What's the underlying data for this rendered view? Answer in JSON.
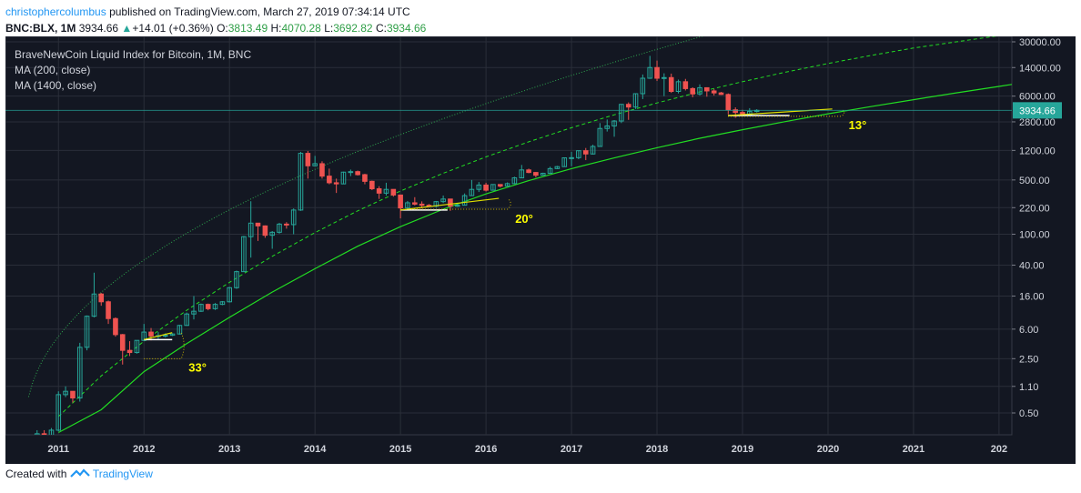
{
  "header": {
    "user": "christophercolumbus",
    "published_text": "published on TradingView.com, March 27, 2019 07:34:14 UTC",
    "symbol": "BNC:BLX, 1M",
    "last": "3934.66",
    "arrow": "▲",
    "change": "+14.01 (+0.36%)",
    "o_label": "O:",
    "o_val": "3813.49",
    "h_label": "H:",
    "h_val": "4070.28",
    "l_label": "L:",
    "l_val": "3692.82",
    "c_label": "C:",
    "c_val": "3934.66"
  },
  "legend": {
    "title": "BraveNewCoin Liquid Index for Bitcoin, 1M, BNC",
    "ma1": "MA (200, close)",
    "ma2": "MA (1400, close)"
  },
  "footer": {
    "created": "Created with",
    "brand": "TradingView"
  },
  "colors": {
    "background": "#131722",
    "grid": "#2a2e39",
    "up": "#26a69a",
    "down": "#ef5350",
    "ma200": "#22dd22",
    "ma1400": "#22dd22",
    "angle_line": "#e0e000",
    "angle_text": "#ffff00",
    "price_label": "#26a69a",
    "axis_text": "#d1d4dc"
  },
  "chart_data": {
    "type": "candlestick",
    "scale": "log",
    "x_ticks": [
      "2011",
      "2012",
      "2013",
      "2014",
      "2015",
      "2016",
      "2017",
      "2018",
      "2019",
      "2020",
      "2021",
      "202"
    ],
    "y_ticks": [
      "30000.00",
      "14000.00",
      "6000.00",
      "2800.00",
      "1200.00",
      "500.00",
      "220.00",
      "100.00",
      "40.00",
      "16.00",
      "6.00",
      "2.50",
      "1.10",
      "0.50"
    ],
    "last_price_label": "3934.66",
    "last_price": 3934.66,
    "candles": [
      {
        "t": 2010.75,
        "o": 0.19,
        "h": 0.3,
        "l": 0.19,
        "c": 0.27
      },
      {
        "t": 2010.833,
        "o": 0.27,
        "h": 0.3,
        "l": 0.21,
        "c": 0.23
      },
      {
        "t": 2010.917,
        "o": 0.23,
        "h": 0.32,
        "l": 0.25,
        "c": 0.3
      },
      {
        "t": 2011.0,
        "o": 0.3,
        "h": 0.95,
        "l": 0.29,
        "c": 0.86
      },
      {
        "t": 2011.083,
        "o": 0.86,
        "h": 1.1,
        "l": 0.8,
        "c": 0.95
      },
      {
        "t": 2011.167,
        "o": 0.95,
        "h": 0.95,
        "l": 0.68,
        "c": 0.78
      },
      {
        "t": 2011.25,
        "o": 0.78,
        "h": 4.0,
        "l": 0.7,
        "c": 3.5
      },
      {
        "t": 2011.333,
        "o": 3.5,
        "h": 9.0,
        "l": 3.2,
        "c": 8.8
      },
      {
        "t": 2011.417,
        "o": 8.8,
        "h": 32.0,
        "l": 8.5,
        "c": 17.0
      },
      {
        "t": 2011.5,
        "o": 17.0,
        "h": 17.5,
        "l": 12.0,
        "c": 13.5
      },
      {
        "t": 2011.583,
        "o": 13.5,
        "h": 14.0,
        "l": 7.0,
        "c": 8.2
      },
      {
        "t": 2011.667,
        "o": 8.2,
        "h": 8.5,
        "l": 4.8,
        "c": 5.1
      },
      {
        "t": 2011.75,
        "o": 5.1,
        "h": 5.2,
        "l": 2.1,
        "c": 3.2
      },
      {
        "t": 2011.833,
        "o": 3.2,
        "h": 4.2,
        "l": 2.7,
        "c": 3.0
      },
      {
        "t": 2011.917,
        "o": 3.0,
        "h": 4.3,
        "l": 2.9,
        "c": 4.3
      },
      {
        "t": 2012.0,
        "o": 4.3,
        "h": 7.0,
        "l": 4.2,
        "c": 5.5
      },
      {
        "t": 2012.083,
        "o": 5.5,
        "h": 6.2,
        "l": 4.3,
        "c": 4.9
      },
      {
        "t": 2012.167,
        "o": 4.9,
        "h": 5.5,
        "l": 4.5,
        "c": 4.95
      },
      {
        "t": 2012.25,
        "o": 4.95,
        "h": 5.3,
        "l": 4.7,
        "c": 5.0
      },
      {
        "t": 2012.333,
        "o": 5.0,
        "h": 5.3,
        "l": 4.9,
        "c": 5.2
      },
      {
        "t": 2012.417,
        "o": 5.2,
        "h": 6.8,
        "l": 5.1,
        "c": 6.7
      },
      {
        "t": 2012.5,
        "o": 6.7,
        "h": 9.8,
        "l": 6.6,
        "c": 9.4
      },
      {
        "t": 2012.583,
        "o": 9.4,
        "h": 16.0,
        "l": 8.0,
        "c": 10.2
      },
      {
        "t": 2012.667,
        "o": 10.2,
        "h": 12.8,
        "l": 10.0,
        "c": 12.5
      },
      {
        "t": 2012.75,
        "o": 12.5,
        "h": 12.8,
        "l": 10.5,
        "c": 11.0
      },
      {
        "t": 2012.833,
        "o": 11.0,
        "h": 13.0,
        "l": 10.6,
        "c": 12.5
      },
      {
        "t": 2012.917,
        "o": 12.5,
        "h": 13.8,
        "l": 12.2,
        "c": 13.5
      },
      {
        "t": 2013.0,
        "o": 13.5,
        "h": 21.0,
        "l": 13.2,
        "c": 20.5
      },
      {
        "t": 2013.083,
        "o": 20.5,
        "h": 34.0,
        "l": 19.8,
        "c": 33.0
      },
      {
        "t": 2013.167,
        "o": 33.0,
        "h": 95.0,
        "l": 33.0,
        "c": 93.0
      },
      {
        "t": 2013.25,
        "o": 93.0,
        "h": 266.0,
        "l": 50.0,
        "c": 139.0
      },
      {
        "t": 2013.333,
        "o": 139.0,
        "h": 140.0,
        "l": 82.0,
        "c": 128.0
      },
      {
        "t": 2013.417,
        "o": 128.0,
        "h": 130.0,
        "l": 90.0,
        "c": 97.0
      },
      {
        "t": 2013.5,
        "o": 97.0,
        "h": 110.0,
        "l": 65.0,
        "c": 106.0
      },
      {
        "t": 2013.583,
        "o": 106.0,
        "h": 140.0,
        "l": 102.0,
        "c": 135.0
      },
      {
        "t": 2013.667,
        "o": 135.0,
        "h": 143.0,
        "l": 118.0,
        "c": 133.0
      },
      {
        "t": 2013.75,
        "o": 133.0,
        "h": 215.0,
        "l": 100.0,
        "c": 205.0
      },
      {
        "t": 2013.833,
        "o": 205.0,
        "h": 1150.0,
        "l": 200.0,
        "c": 1100.0
      },
      {
        "t": 2013.917,
        "o": 1100.0,
        "h": 1180.0,
        "l": 520.0,
        "c": 760.0
      },
      {
        "t": 2014.0,
        "o": 760.0,
        "h": 1020.0,
        "l": 750.0,
        "c": 810.0
      },
      {
        "t": 2014.083,
        "o": 810.0,
        "h": 870.0,
        "l": 520.0,
        "c": 560.0
      },
      {
        "t": 2014.167,
        "o": 560.0,
        "h": 700.0,
        "l": 440.0,
        "c": 460.0
      },
      {
        "t": 2014.25,
        "o": 460.0,
        "h": 520.0,
        "l": 340.0,
        "c": 445.0
      },
      {
        "t": 2014.333,
        "o": 445.0,
        "h": 640.0,
        "l": 440.0,
        "c": 630.0
      },
      {
        "t": 2014.417,
        "o": 630.0,
        "h": 680.0,
        "l": 560.0,
        "c": 640.0
      },
      {
        "t": 2014.5,
        "o": 640.0,
        "h": 660.0,
        "l": 570.0,
        "c": 585.0
      },
      {
        "t": 2014.583,
        "o": 585.0,
        "h": 600.0,
        "l": 440.0,
        "c": 480.0
      },
      {
        "t": 2014.667,
        "o": 480.0,
        "h": 490.0,
        "l": 370.0,
        "c": 385.0
      },
      {
        "t": 2014.75,
        "o": 385.0,
        "h": 415.0,
        "l": 285.0,
        "c": 338.0
      },
      {
        "t": 2014.833,
        "o": 338.0,
        "h": 460.0,
        "l": 315.0,
        "c": 378.0
      },
      {
        "t": 2014.917,
        "o": 378.0,
        "h": 380.0,
        "l": 305.0,
        "c": 320.0
      },
      {
        "t": 2015.0,
        "o": 320.0,
        "h": 320.0,
        "l": 160.0,
        "c": 218.0
      },
      {
        "t": 2015.083,
        "o": 218.0,
        "h": 268.0,
        "l": 210.0,
        "c": 254.0
      },
      {
        "t": 2015.167,
        "o": 254.0,
        "h": 300.0,
        "l": 235.0,
        "c": 244.0
      },
      {
        "t": 2015.25,
        "o": 244.0,
        "h": 265.0,
        "l": 215.0,
        "c": 236.0
      },
      {
        "t": 2015.333,
        "o": 236.0,
        "h": 245.0,
        "l": 225.0,
        "c": 230.0
      },
      {
        "t": 2015.417,
        "o": 230.0,
        "h": 268.0,
        "l": 220.0,
        "c": 263.0
      },
      {
        "t": 2015.5,
        "o": 263.0,
        "h": 315.0,
        "l": 252.0,
        "c": 284.0
      },
      {
        "t": 2015.583,
        "o": 284.0,
        "h": 285.0,
        "l": 200.0,
        "c": 230.0
      },
      {
        "t": 2015.667,
        "o": 230.0,
        "h": 246.0,
        "l": 225.0,
        "c": 236.0
      },
      {
        "t": 2015.75,
        "o": 236.0,
        "h": 335.0,
        "l": 236.0,
        "c": 314.0
      },
      {
        "t": 2015.833,
        "o": 314.0,
        "h": 500.0,
        "l": 310.0,
        "c": 378.0
      },
      {
        "t": 2015.917,
        "o": 378.0,
        "h": 470.0,
        "l": 350.0,
        "c": 430.0
      },
      {
        "t": 2016.0,
        "o": 430.0,
        "h": 460.0,
        "l": 355.0,
        "c": 369.0
      },
      {
        "t": 2016.083,
        "o": 369.0,
        "h": 440.0,
        "l": 365.0,
        "c": 437.0
      },
      {
        "t": 2016.167,
        "o": 437.0,
        "h": 440.0,
        "l": 400.0,
        "c": 416.0
      },
      {
        "t": 2016.25,
        "o": 416.0,
        "h": 465.0,
        "l": 412.0,
        "c": 448.0
      },
      {
        "t": 2016.333,
        "o": 448.0,
        "h": 550.0,
        "l": 440.0,
        "c": 532.0
      },
      {
        "t": 2016.417,
        "o": 532.0,
        "h": 780.0,
        "l": 530.0,
        "c": 673.0
      },
      {
        "t": 2016.5,
        "o": 673.0,
        "h": 700.0,
        "l": 610.0,
        "c": 624.0
      },
      {
        "t": 2016.583,
        "o": 624.0,
        "h": 630.0,
        "l": 540.0,
        "c": 575.0
      },
      {
        "t": 2016.667,
        "o": 575.0,
        "h": 620.0,
        "l": 570.0,
        "c": 609.0
      },
      {
        "t": 2016.75,
        "o": 609.0,
        "h": 740.0,
        "l": 605.0,
        "c": 700.0
      },
      {
        "t": 2016.833,
        "o": 700.0,
        "h": 760.0,
        "l": 690.0,
        "c": 742.0
      },
      {
        "t": 2016.917,
        "o": 742.0,
        "h": 975.0,
        "l": 740.0,
        "c": 963.0
      },
      {
        "t": 2017.0,
        "o": 963.0,
        "h": 1150.0,
        "l": 750.0,
        "c": 968.0
      },
      {
        "t": 2017.083,
        "o": 968.0,
        "h": 1200.0,
        "l": 925.0,
        "c": 1190.0
      },
      {
        "t": 2017.167,
        "o": 1190.0,
        "h": 1290.0,
        "l": 900.0,
        "c": 1080.0
      },
      {
        "t": 2017.25,
        "o": 1080.0,
        "h": 1420.0,
        "l": 1060.0,
        "c": 1350.0
      },
      {
        "t": 2017.333,
        "o": 1350.0,
        "h": 2700.0,
        "l": 1340.0,
        "c": 2300.0
      },
      {
        "t": 2017.417,
        "o": 2300.0,
        "h": 3000.0,
        "l": 2100.0,
        "c": 2480.0
      },
      {
        "t": 2017.5,
        "o": 2480.0,
        "h": 2950.0,
        "l": 1800.0,
        "c": 2870.0
      },
      {
        "t": 2017.583,
        "o": 2870.0,
        "h": 4750.0,
        "l": 2700.0,
        "c": 4700.0
      },
      {
        "t": 2017.667,
        "o": 4700.0,
        "h": 4980.0,
        "l": 2970.0,
        "c": 4340.0
      },
      {
        "t": 2017.75,
        "o": 4340.0,
        "h": 6450.0,
        "l": 4100.0,
        "c": 6450.0
      },
      {
        "t": 2017.833,
        "o": 6450.0,
        "h": 11400.0,
        "l": 5500.0,
        "c": 10200.0
      },
      {
        "t": 2017.917,
        "o": 10200.0,
        "h": 19800.0,
        "l": 10000.0,
        "c": 14000.0
      },
      {
        "t": 2018.0,
        "o": 14000.0,
        "h": 17200.0,
        "l": 9400.0,
        "c": 10200.0
      },
      {
        "t": 2018.083,
        "o": 10200.0,
        "h": 11800.0,
        "l": 6000.0,
        "c": 10400.0
      },
      {
        "t": 2018.167,
        "o": 10400.0,
        "h": 11700.0,
        "l": 6600.0,
        "c": 6900.0
      },
      {
        "t": 2018.25,
        "o": 6900.0,
        "h": 9800.0,
        "l": 6500.0,
        "c": 9200.0
      },
      {
        "t": 2018.333,
        "o": 9200.0,
        "h": 10000.0,
        "l": 7100.0,
        "c": 7500.0
      },
      {
        "t": 2018.417,
        "o": 7500.0,
        "h": 7800.0,
        "l": 5800.0,
        "c": 6400.0
      },
      {
        "t": 2018.5,
        "o": 6400.0,
        "h": 8500.0,
        "l": 6100.0,
        "c": 7700.0
      },
      {
        "t": 2018.583,
        "o": 7700.0,
        "h": 7800.0,
        "l": 5900.0,
        "c": 7000.0
      },
      {
        "t": 2018.667,
        "o": 7000.0,
        "h": 7400.0,
        "l": 6100.0,
        "c": 6600.0
      },
      {
        "t": 2018.75,
        "o": 6600.0,
        "h": 6800.0,
        "l": 6200.0,
        "c": 6300.0
      },
      {
        "t": 2018.833,
        "o": 6300.0,
        "h": 6500.0,
        "l": 3500.0,
        "c": 4000.0
      },
      {
        "t": 2018.917,
        "o": 4000.0,
        "h": 4300.0,
        "l": 3150.0,
        "c": 3700.0
      },
      {
        "t": 2019.0,
        "o": 3700.0,
        "h": 4000.0,
        "l": 3350.0,
        "c": 3450.0
      },
      {
        "t": 2019.083,
        "o": 3450.0,
        "h": 4200.0,
        "l": 3400.0,
        "c": 3820.0
      },
      {
        "t": 2019.167,
        "o": 3813.49,
        "h": 4070.28,
        "l": 3692.82,
        "c": 3934.66
      }
    ],
    "ma200": [
      [
        2011.0,
        0.28
      ],
      [
        2011.5,
        0.55
      ],
      [
        2012.0,
        1.7
      ],
      [
        2012.5,
        3.9
      ],
      [
        2013.0,
        8.5
      ],
      [
        2013.5,
        18.0
      ],
      [
        2014.0,
        36.0
      ],
      [
        2014.5,
        70.0
      ],
      [
        2015.0,
        125.0
      ],
      [
        2015.5,
        210.0
      ],
      [
        2016.0,
        330.0
      ],
      [
        2016.5,
        490.0
      ],
      [
        2017.0,
        700.0
      ],
      [
        2017.5,
        960.0
      ],
      [
        2018.0,
        1300.0
      ],
      [
        2018.5,
        1720.0
      ],
      [
        2019.0,
        2220.0
      ],
      [
        2019.5,
        2820.0
      ],
      [
        2020.0,
        3550.0
      ],
      [
        2020.5,
        4400.0
      ],
      [
        2021.0,
        5400.0
      ],
      [
        2021.5,
        6600.0
      ],
      [
        2022.0,
        8000.0
      ],
      [
        2022.15,
        8500.0
      ]
    ],
    "ma1400": [
      [
        2011.0,
        0.45
      ],
      [
        2011.5,
        1.5
      ],
      [
        2012.0,
        4.2
      ],
      [
        2012.5,
        10.5
      ],
      [
        2013.0,
        24.0
      ],
      [
        2013.5,
        52.0
      ],
      [
        2014.0,
        105.0
      ],
      [
        2014.5,
        200.0
      ],
      [
        2015.0,
        360.0
      ],
      [
        2015.5,
        610.0
      ],
      [
        2016.0,
        990.0
      ],
      [
        2016.5,
        1550.0
      ],
      [
        2017.0,
        2350.0
      ],
      [
        2017.5,
        3450.0
      ],
      [
        2018.0,
        4900.0
      ],
      [
        2018.5,
        6800.0
      ],
      [
        2019.0,
        9200.0
      ],
      [
        2019.5,
        12200.0
      ],
      [
        2020.0,
        15800.0
      ],
      [
        2020.5,
        20000.0
      ],
      [
        2021.0,
        25000.0
      ],
      [
        2021.5,
        30000.0
      ],
      [
        2022.0,
        36000.0
      ]
    ],
    "angles": [
      {
        "label": "33°",
        "start": [
          2012.0,
          4.4
        ],
        "end": [
          2012.33,
          4.4
        ],
        "slope_end": [
          2012.33,
          5.4
        ],
        "arc_bottom": 2.5
      },
      {
        "label": "20°",
        "start": [
          2015.0,
          205.0
        ],
        "end": [
          2015.55,
          205.0
        ],
        "slope_end": [
          2016.15,
          290.0
        ],
        "arc_bottom": 210.0
      },
      {
        "label": "13°",
        "start": [
          2018.83,
          3380.0
        ],
        "end": [
          2019.55,
          3380.0
        ],
        "slope_end": [
          2020.05,
          4100.0
        ],
        "arc_bottom": 3300.0
      }
    ]
  }
}
